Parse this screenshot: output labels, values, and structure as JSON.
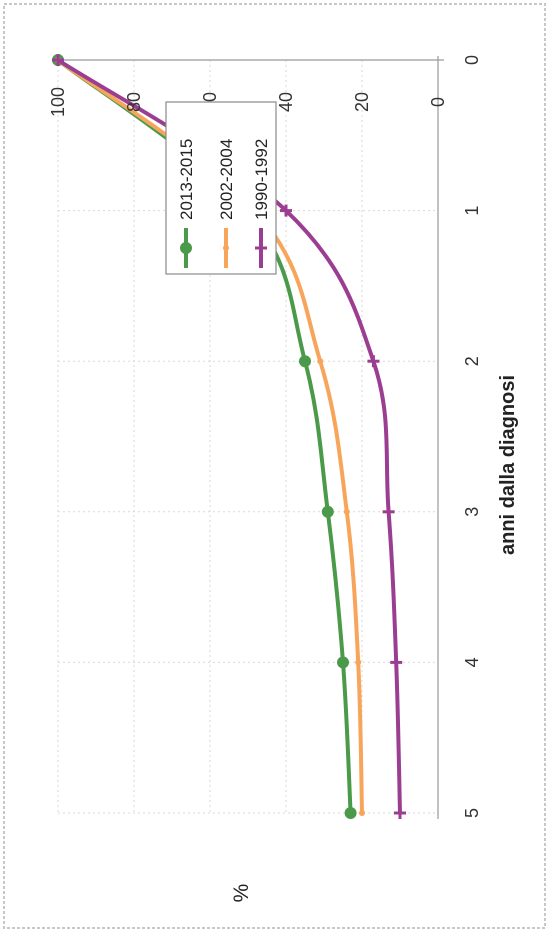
{
  "chart_data": {
    "type": "line",
    "orientation": "rotated-90-counterclockwise",
    "xlabel": "anni dalla diagnosi",
    "ylabel": "%",
    "x": [
      0,
      1,
      2,
      3,
      4,
      5
    ],
    "xlim": [
      0,
      5
    ],
    "ylim": [
      0,
      100
    ],
    "x_ticks": [
      "0",
      "1",
      "2",
      "3",
      "4",
      "5"
    ],
    "y_ticks": [
      "0",
      "20",
      "40",
      "60",
      "80",
      "100"
    ],
    "grid": true,
    "legend_position": "top-right",
    "series": [
      {
        "name": "2013-2015",
        "color": "#4a9a4a",
        "marker": "circle",
        "values": [
          100,
          50,
          35,
          29,
          25,
          23
        ]
      },
      {
        "name": "2002-2004",
        "color": "#f7a55a",
        "marker": "none",
        "values": [
          100,
          48,
          31,
          24,
          21,
          20
        ]
      },
      {
        "name": "1990-1992",
        "color": "#9b3e92",
        "marker": "cross",
        "values": [
          100,
          40,
          17,
          13,
          11,
          10
        ]
      }
    ]
  }
}
